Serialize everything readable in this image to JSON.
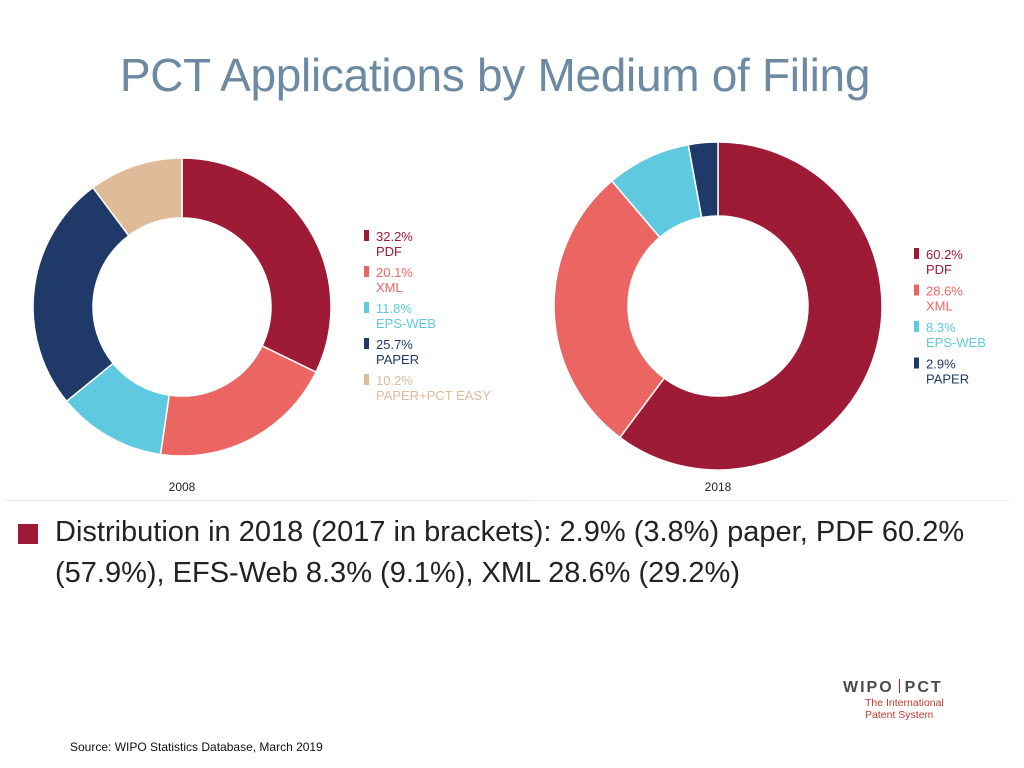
{
  "title": "PCT Applications by Medium of Filing",
  "chart_data": [
    {
      "type": "pie",
      "variant": "donut",
      "label": "2008",
      "categories": [
        "PDF",
        "XML",
        "EPS-WEB",
        "PAPER",
        "PAPER+PCT EASY"
      ],
      "values": [
        32.2,
        20.1,
        11.8,
        25.7,
        10.2
      ],
      "value_labels": [
        "32.2%",
        "20.1%",
        "11.8%",
        "25.7%",
        "10.2%"
      ],
      "colors": [
        "#9e1b35",
        "#eb6563",
        "#5ec9df",
        "#1f3a68",
        "#e0bb99"
      ],
      "legend_placement": "right"
    },
    {
      "type": "pie",
      "variant": "donut",
      "label": "2018",
      "categories": [
        "PDF",
        "XML",
        "EPS-WEB",
        "PAPER"
      ],
      "values": [
        60.2,
        28.6,
        8.3,
        2.9
      ],
      "value_labels": [
        "60.2%",
        "28.6%",
        "8.3%",
        "2.9%"
      ],
      "colors": [
        "#9e1b35",
        "#eb6563",
        "#5ec9df",
        "#1f3a68"
      ],
      "legend_placement": "right"
    }
  ],
  "bullet": {
    "text": "Distribution in 2018 (2017 in brackets):  2.9% (3.8%) paper, PDF 60.2% (57.9%), EFS-Web 8.3% (9.1%), XML 28.6% (29.2%)"
  },
  "source": "Source:  WIPO Statistics Database, March 2019",
  "logo": {
    "wipo": "WIPO",
    "pct": "PCT",
    "line1": "The International",
    "line2": "Patent System"
  }
}
